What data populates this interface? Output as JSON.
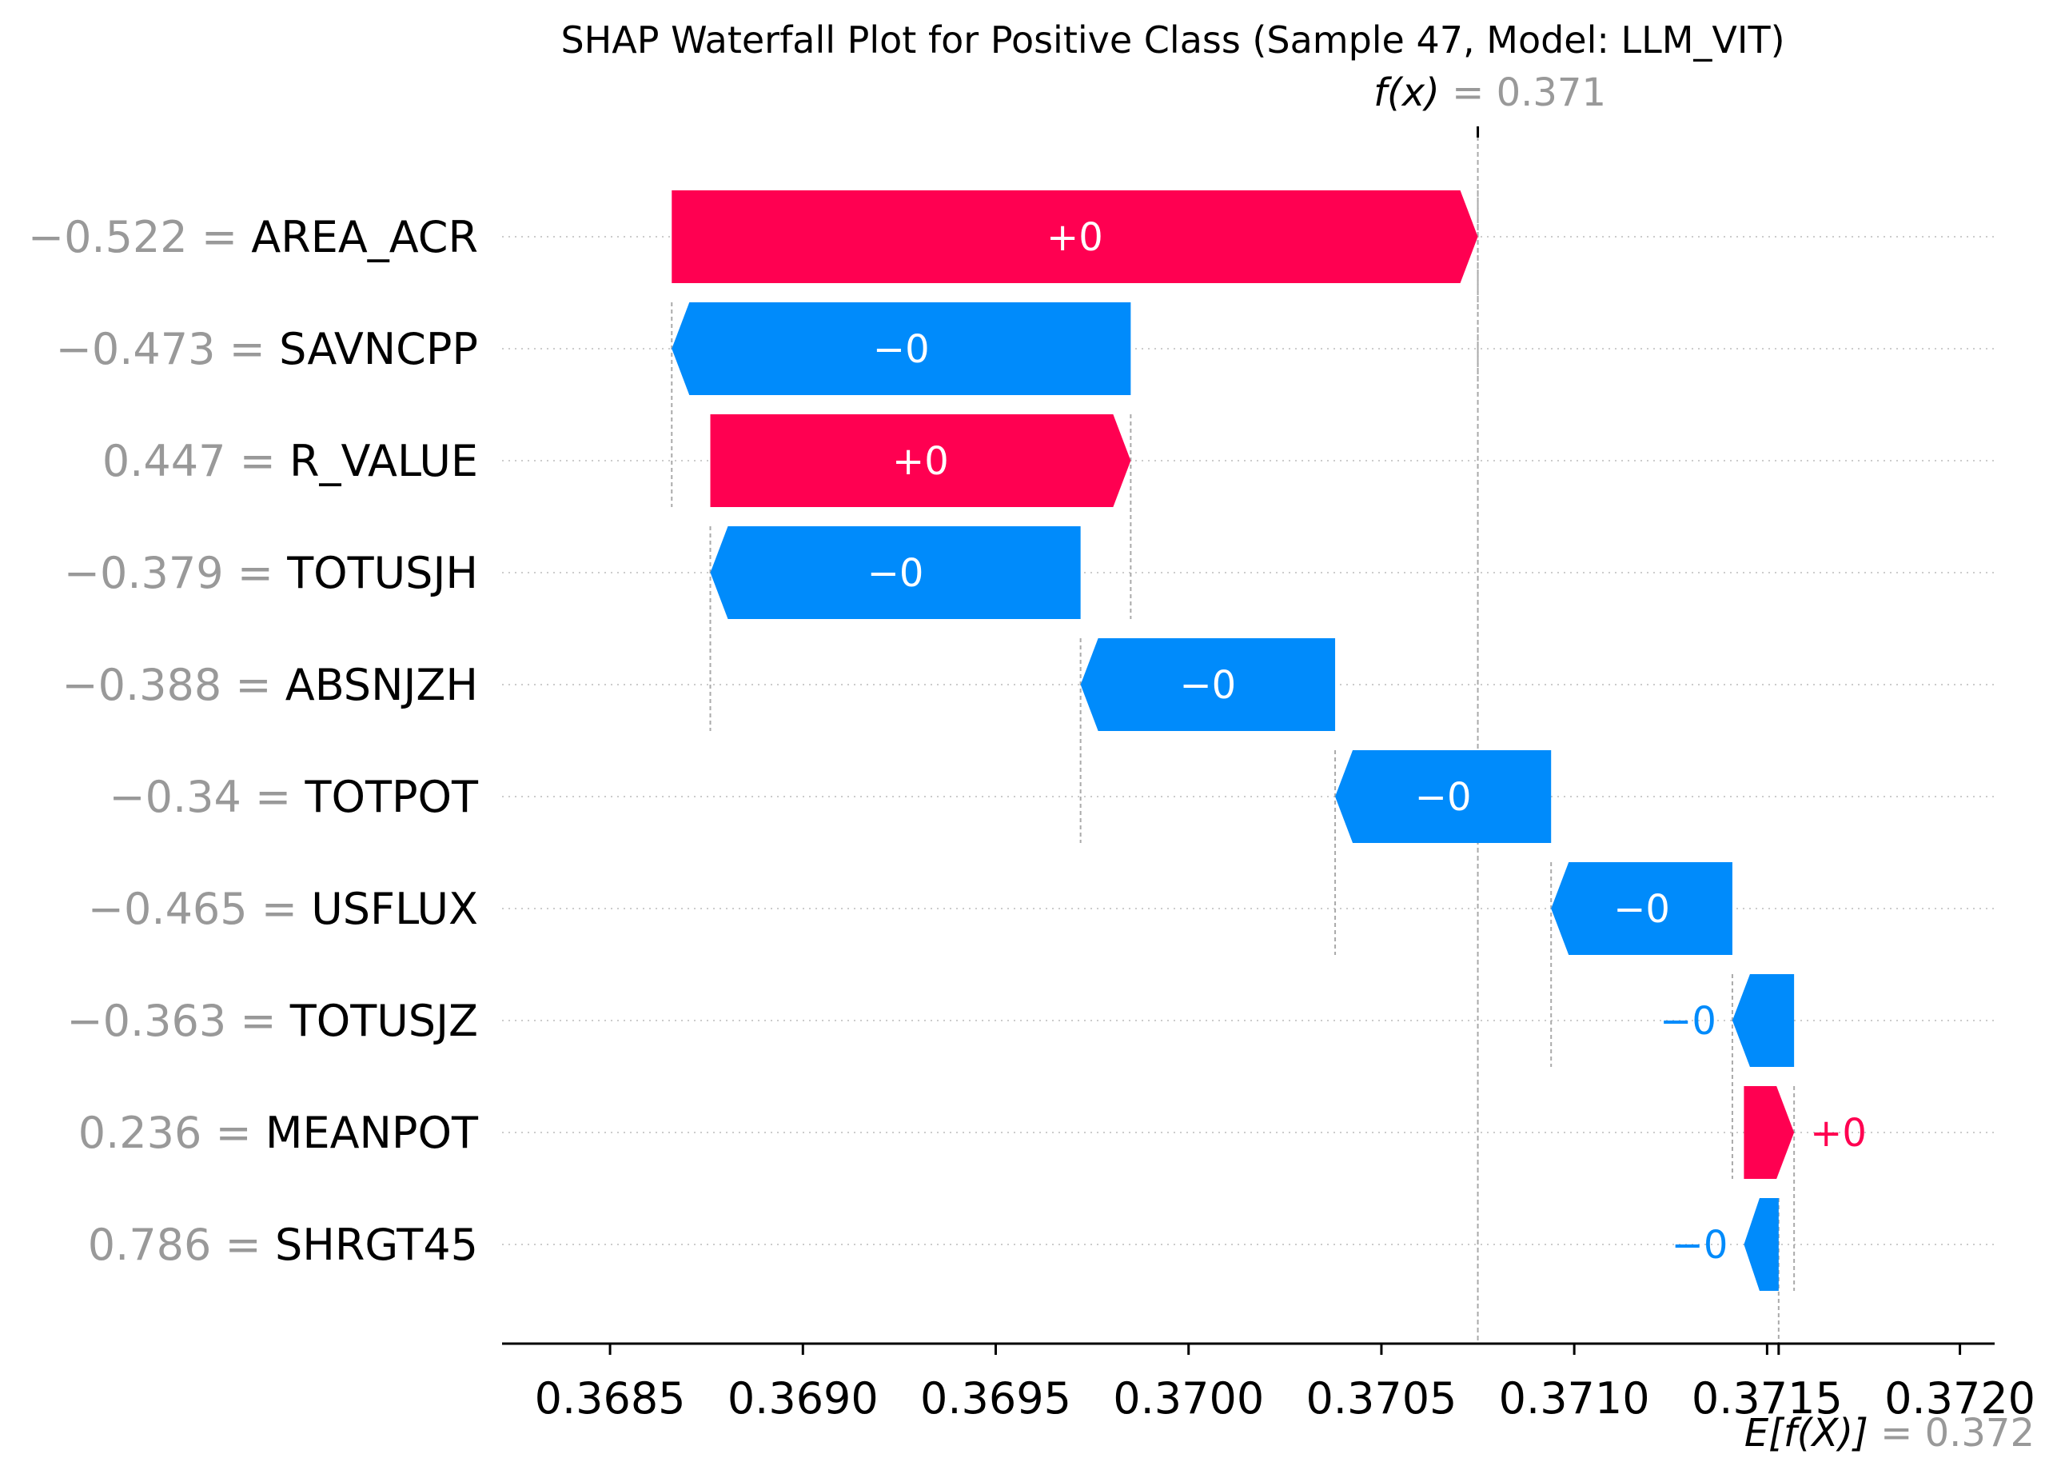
{
  "chart_data": {
    "type": "waterfall",
    "title": "SHAP Waterfall Plot for Positive Class (Sample 47, Model: LLM_VIT)",
    "fx": {
      "label": "f(x)",
      "value": "0.371",
      "x": 0.37075
    },
    "base": {
      "label": "E[f(X)]",
      "value": "0.372",
      "x": 0.37153
    },
    "xlim": [
      0.36822,
      0.37209
    ],
    "x_ticks": [
      "0.3685",
      "0.3690",
      "0.3695",
      "0.3700",
      "0.3705",
      "0.3710",
      "0.3715",
      "0.3720"
    ],
    "x_tick_values": [
      0.3685,
      0.369,
      0.3695,
      0.37,
      0.3705,
      0.371,
      0.3715,
      0.372
    ],
    "grid": "dotted horizontal rows",
    "colors": {
      "positive": "#ff0051",
      "negative": "#008bfb",
      "muted": "#999999"
    },
    "features": [
      {
        "name": "AREA_ACR",
        "value": "−0.522",
        "label": "+0",
        "start": 0.36866,
        "end": 0.37075
      },
      {
        "name": "SAVNCPP",
        "value": "−0.473",
        "label": "−0",
        "start": 0.36985,
        "end": 0.36866
      },
      {
        "name": "R_VALUE",
        "value": "0.447",
        "label": "+0",
        "start": 0.36876,
        "end": 0.36985
      },
      {
        "name": "TOTUSJH",
        "value": "−0.379",
        "label": "−0",
        "start": 0.36972,
        "end": 0.36876
      },
      {
        "name": "ABSNJZH",
        "value": "−0.388",
        "label": "−0",
        "start": 0.37038,
        "end": 0.36972
      },
      {
        "name": "TOTPOT",
        "value": "−0.34",
        "label": "−0",
        "start": 0.37094,
        "end": 0.37038
      },
      {
        "name": "USFLUX",
        "value": "−0.465",
        "label": "−0",
        "start": 0.37141,
        "end": 0.37094
      },
      {
        "name": "TOTUSJZ",
        "value": "−0.363",
        "label": "−0",
        "start": 0.37157,
        "end": 0.37141
      },
      {
        "name": "MEANPOT",
        "value": "0.236",
        "label": "+0",
        "start": 0.37144,
        "end": 0.37157
      },
      {
        "name": "SHRGT45",
        "value": "0.786",
        "label": "−0",
        "start": 0.37153,
        "end": 0.37144
      }
    ]
  }
}
